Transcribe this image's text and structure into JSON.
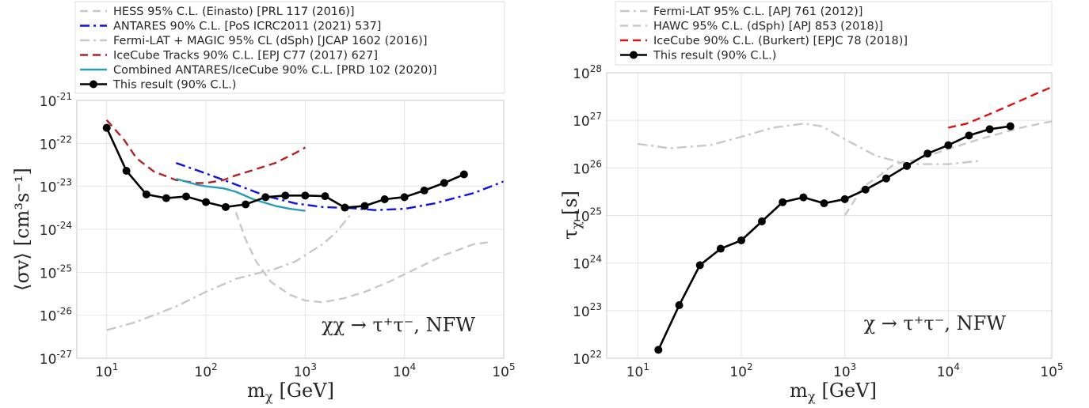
{
  "chart_data": [
    {
      "type": "line",
      "xlabel_main": "m",
      "xlabel_sub": "χ",
      "xlabel_unit": "[GeV]",
      "ylabel_main": "⟨σv⟩",
      "ylabel_unit": "[cm³s⁻¹]",
      "xscale": "log",
      "yscale": "log",
      "xlim": [
        5,
        100000
      ],
      "ylim": [
        1e-27,
        1e-21
      ],
      "grid": true,
      "legend_placement": "above-plot",
      "annotation": "χχ → τ⁺τ⁻,  NFW",
      "xtick_labels": [
        {
          "value": 10,
          "base": "10",
          "exp": "1"
        },
        {
          "value": 100,
          "base": "10",
          "exp": "2"
        },
        {
          "value": 1000,
          "base": "10",
          "exp": "3"
        },
        {
          "value": 10000,
          "base": "10",
          "exp": "4"
        },
        {
          "value": 100000,
          "base": "10",
          "exp": "5"
        }
      ],
      "ytick_labels": [
        {
          "value": 1e-21,
          "base": "10",
          "exp": "-21"
        },
        {
          "value": 1e-22,
          "base": "10",
          "exp": "-22"
        },
        {
          "value": 1e-23,
          "base": "10",
          "exp": "-23"
        },
        {
          "value": 1e-24,
          "base": "10",
          "exp": "-24"
        },
        {
          "value": 1e-25,
          "base": "10",
          "exp": "-25"
        },
        {
          "value": 1e-26,
          "base": "10",
          "exp": "-26"
        },
        {
          "value": 1e-27,
          "base": "10",
          "exp": "-27"
        }
      ],
      "series": [
        {
          "name": "HESS 95% C.L. (Einasto) [PRL 117 (2016)]",
          "color": "#c8c8c8",
          "dash": "dashed",
          "x": [
            200,
            250,
            320,
            450,
            700,
            1000,
            1500,
            2500,
            4000,
            7000,
            12000,
            25000,
            50000,
            70000
          ],
          "y": [
            2.5e-24,
            6e-25,
            1.8e-25,
            6e-26,
            3e-26,
            2.2e-26,
            2e-26,
            2.5e-26,
            3.5e-26,
            6e-26,
            1.1e-25,
            2.5e-25,
            4.5e-25,
            5e-25
          ]
        },
        {
          "name": "ANTARES 90% C.L. [PoS ICRC2011 (2021) 537]",
          "color": "#1010e0",
          "dash": "dashdot",
          "x": [
            50,
            100,
            200,
            400,
            800,
            1500,
            3000,
            5000,
            10000,
            20000,
            50000,
            100000
          ],
          "y": [
            3.5e-23,
            2e-23,
            1.1e-23,
            6e-24,
            4e-24,
            3.3e-24,
            3.1e-24,
            2.8e-24,
            3e-24,
            4e-24,
            7e-24,
            1.3e-23
          ]
        },
        {
          "name": "Fermi-LAT + MAGIC 95% CL (dSph) [JCAP 1602 (2016)]",
          "color": "#c8c8c8",
          "dash": "dashdot",
          "x": [
            10,
            20,
            50,
            100,
            200,
            500,
            800,
            1000,
            1500,
            2000,
            3000
          ],
          "y": [
            4.5e-27,
            7e-27,
            1.6e-26,
            3.5e-26,
            7e-26,
            1.2e-25,
            1.8e-25,
            2.5e-25,
            4.5e-25,
            8e-25,
            2.5e-24
          ]
        },
        {
          "name": "IceCube Tracks 90% C.L. [EPJ C77 (2017) 627]",
          "color": "#b22222",
          "dash": "dashed",
          "x": [
            10,
            15,
            20,
            30,
            50,
            80,
            100,
            150,
            200,
            300,
            500,
            800,
            1000
          ],
          "y": [
            3.5e-22,
            1.2e-22,
            4.5e-23,
            2.2e-23,
            1.4e-23,
            1.2e-23,
            1.2e-23,
            1.4e-23,
            1.8e-23,
            2.4e-23,
            3.5e-23,
            6e-23,
            8e-23
          ]
        },
        {
          "name": "Combined ANTARES/IceCube 90% C.L. [PRD 102 (2020)]",
          "color": "#2a9db5",
          "dash": "solid",
          "x": [
            50,
            80,
            100,
            150,
            200,
            300,
            500,
            700,
            1000
          ],
          "y": [
            1.5e-23,
            1.1e-23,
            1e-23,
            9e-24,
            7.5e-24,
            5e-24,
            3.5e-24,
            3e-24,
            2.7e-24
          ]
        },
        {
          "name": "This result (90% C.L.)",
          "color": "#000000",
          "dash": "solid",
          "markers": true,
          "x": [
            10,
            15.8,
            25.1,
            39.8,
            63.1,
            100,
            158,
            251,
            398,
            631,
            1000,
            1585,
            2512,
            3981,
            6310,
            10000,
            15849,
            25119,
            39811
          ],
          "y": [
            2.3e-22,
            2.3e-23,
            6.5e-24,
            5.3e-24,
            5.8e-24,
            4.3e-24,
            3.3e-24,
            3.8e-24,
            5.6e-24,
            6.1e-24,
            6.1e-24,
            5.9e-24,
            3.2e-24,
            3.5e-24,
            5e-24,
            5.6e-24,
            8e-24,
            1.2e-23,
            1.9e-23
          ]
        }
      ]
    },
    {
      "type": "line",
      "xlabel_main": "m",
      "xlabel_sub": "χ",
      "xlabel_unit": "[GeV]",
      "ylabel_main": "τ",
      "ylabel_sub": "χ",
      "ylabel_unit": "[s]",
      "xscale": "log",
      "yscale": "log",
      "xlim": [
        5,
        100000
      ],
      "ylim": [
        1e+22,
        1e+28
      ],
      "grid": true,
      "legend_placement": "above-plot",
      "annotation": "χ → τ⁺τ⁻,  NFW",
      "xtick_labels": [
        {
          "value": 10,
          "base": "10",
          "exp": "1"
        },
        {
          "value": 100,
          "base": "10",
          "exp": "2"
        },
        {
          "value": 1000,
          "base": "10",
          "exp": "3"
        },
        {
          "value": 10000,
          "base": "10",
          "exp": "4"
        },
        {
          "value": 100000,
          "base": "10",
          "exp": "5"
        }
      ],
      "ytick_labels": [
        {
          "value": 1e+28,
          "base": "10",
          "exp": "28"
        },
        {
          "value": 1e+27,
          "base": "10",
          "exp": "27"
        },
        {
          "value": 1e+26,
          "base": "10",
          "exp": "26"
        },
        {
          "value": 1e+25,
          "base": "10",
          "exp": "25"
        },
        {
          "value": 1e+24,
          "base": "10",
          "exp": "24"
        },
        {
          "value": 1e+23,
          "base": "10",
          "exp": "23"
        },
        {
          "value": 1e+22,
          "base": "10",
          "exp": "22"
        }
      ],
      "series": [
        {
          "name": "Fermi-LAT 95% C.L. [APJ 761 (2012)]",
          "color": "#c8c8c8",
          "dash": "dashdot",
          "x": [
            10,
            20,
            50,
            100,
            200,
            400,
            600,
            1000,
            2000,
            4000,
            10000,
            20000
          ],
          "y": [
            3.2e+26,
            2.6e+26,
            3e+26,
            4.5e+26,
            7e+26,
            8.5e+26,
            7.5e+26,
            4e+26,
            1.8e+26,
            1.2e+26,
            1.2e+26,
            1.4e+26
          ]
        },
        {
          "name": "HAWC 95% C.L. (dSph) [APJ 853 (2018)]",
          "color": "#c8c8c8",
          "dash": "dashed",
          "x": [
            1000,
            1500,
            2000,
            3000,
            5000,
            10000,
            20000,
            50000,
            100000
          ],
          "y": [
            1e+25,
            4e+25,
            6e+25,
            1.2e+26,
            1.5e+26,
            2.5e+26,
            4e+26,
            7e+26,
            9.5e+26
          ]
        },
        {
          "name": "IceCube 90% C.L. (Burkert) [EPJC 78 (2018)]",
          "color": "#e01010",
          "dash": "dashed",
          "x": [
            10000,
            15000,
            20000,
            30000,
            50000,
            70000,
            100000
          ],
          "y": [
            7e+26,
            8.5e+26,
            1.1e+27,
            1.6e+27,
            2.6e+27,
            3.6e+27,
            5e+27
          ]
        },
        {
          "name": "This result (90% C.L.)",
          "color": "#000000",
          "dash": "solid",
          "markers": true,
          "x": [
            15.8,
            25.1,
            39.8,
            63.1,
            100,
            158,
            251,
            398,
            631,
            1000,
            1585,
            2512,
            3981,
            6310,
            10000,
            15849,
            25119,
            39811
          ],
          "y": [
            1.5e+22,
            1.3e+23,
            9e+23,
            2e+24,
            3e+24,
            7.5e+24,
            1.9e+25,
            2.4e+25,
            1.8e+25,
            2.2e+25,
            3.5e+25,
            6e+25,
            1.1e+26,
            2e+26,
            3e+26,
            4.8e+26,
            6.5e+26,
            7.5e+26
          ]
        }
      ]
    }
  ]
}
